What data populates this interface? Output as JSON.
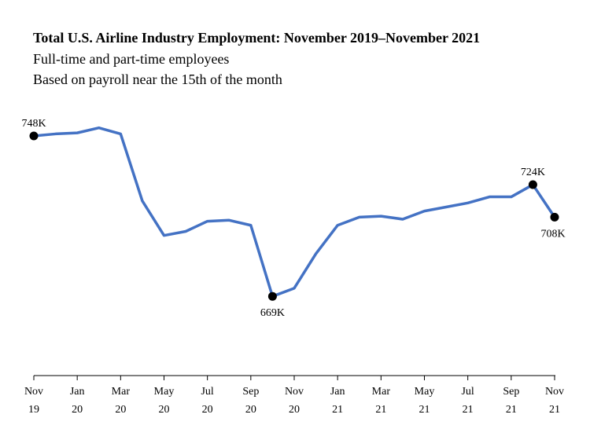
{
  "chart_data": {
    "type": "line",
    "title": "Total U.S. Airline Industry Employment: November 2019–November 2021",
    "subtitles": [
      "Full-time and part-time employees",
      "Based on payroll near the 15th of the month"
    ],
    "xlabel": "",
    "ylabel": "",
    "x": [
      "Nov 2019",
      "Dec 2019",
      "Jan 2020",
      "Feb 2020",
      "Mar 2020",
      "Apr 2020",
      "May 2020",
      "Jun 2020",
      "Jul 2020",
      "Aug 2020",
      "Sep 2020",
      "Oct 2020",
      "Nov 2020",
      "Dec 2020",
      "Jan 2021",
      "Feb 2021",
      "Mar 2021",
      "Apr 2021",
      "May 2021",
      "Jun 2021",
      "Jul 2021",
      "Aug 2021",
      "Sep 2021",
      "Oct 2021",
      "Nov 2021"
    ],
    "series": [
      {
        "name": "",
        "color": "#4472C4",
        "values": [
          748,
          749,
          749.5,
          752,
          749,
          716,
          699,
          701,
          706,
          706.5,
          704,
          669,
          673,
          690,
          704,
          708,
          708.5,
          707,
          711,
          713,
          715,
          718,
          718,
          724,
          708
        ]
      }
    ],
    "ylim": [
      630,
      760
    ],
    "grid": false,
    "y_axis_visible": false,
    "x_tick_labels": [
      {
        "index": 0,
        "month": "Nov",
        "year": "19"
      },
      {
        "index": 2,
        "month": "Jan",
        "year": "20"
      },
      {
        "index": 4,
        "month": "Mar",
        "year": "20"
      },
      {
        "index": 6,
        "month": "May",
        "year": "20"
      },
      {
        "index": 8,
        "month": "Jul",
        "year": "20"
      },
      {
        "index": 10,
        "month": "Sep",
        "year": "20"
      },
      {
        "index": 12,
        "month": "Nov",
        "year": "20"
      },
      {
        "index": 14,
        "month": "Jan",
        "year": "21"
      },
      {
        "index": 16,
        "month": "Mar",
        "year": "21"
      },
      {
        "index": 18,
        "month": "May",
        "year": "21"
      },
      {
        "index": 20,
        "month": "Jul",
        "year": "21"
      },
      {
        "index": 22,
        "month": "Sep",
        "year": "21"
      },
      {
        "index": 24,
        "month": "Nov",
        "year": "21"
      }
    ],
    "annotations": [
      {
        "index": 0,
        "text": "748K",
        "position": "above"
      },
      {
        "index": 11,
        "text": "669K",
        "position": "below"
      },
      {
        "index": 23,
        "text": "724K",
        "position": "above"
      },
      {
        "index": 24,
        "text": "708K",
        "position": "below"
      }
    ]
  }
}
